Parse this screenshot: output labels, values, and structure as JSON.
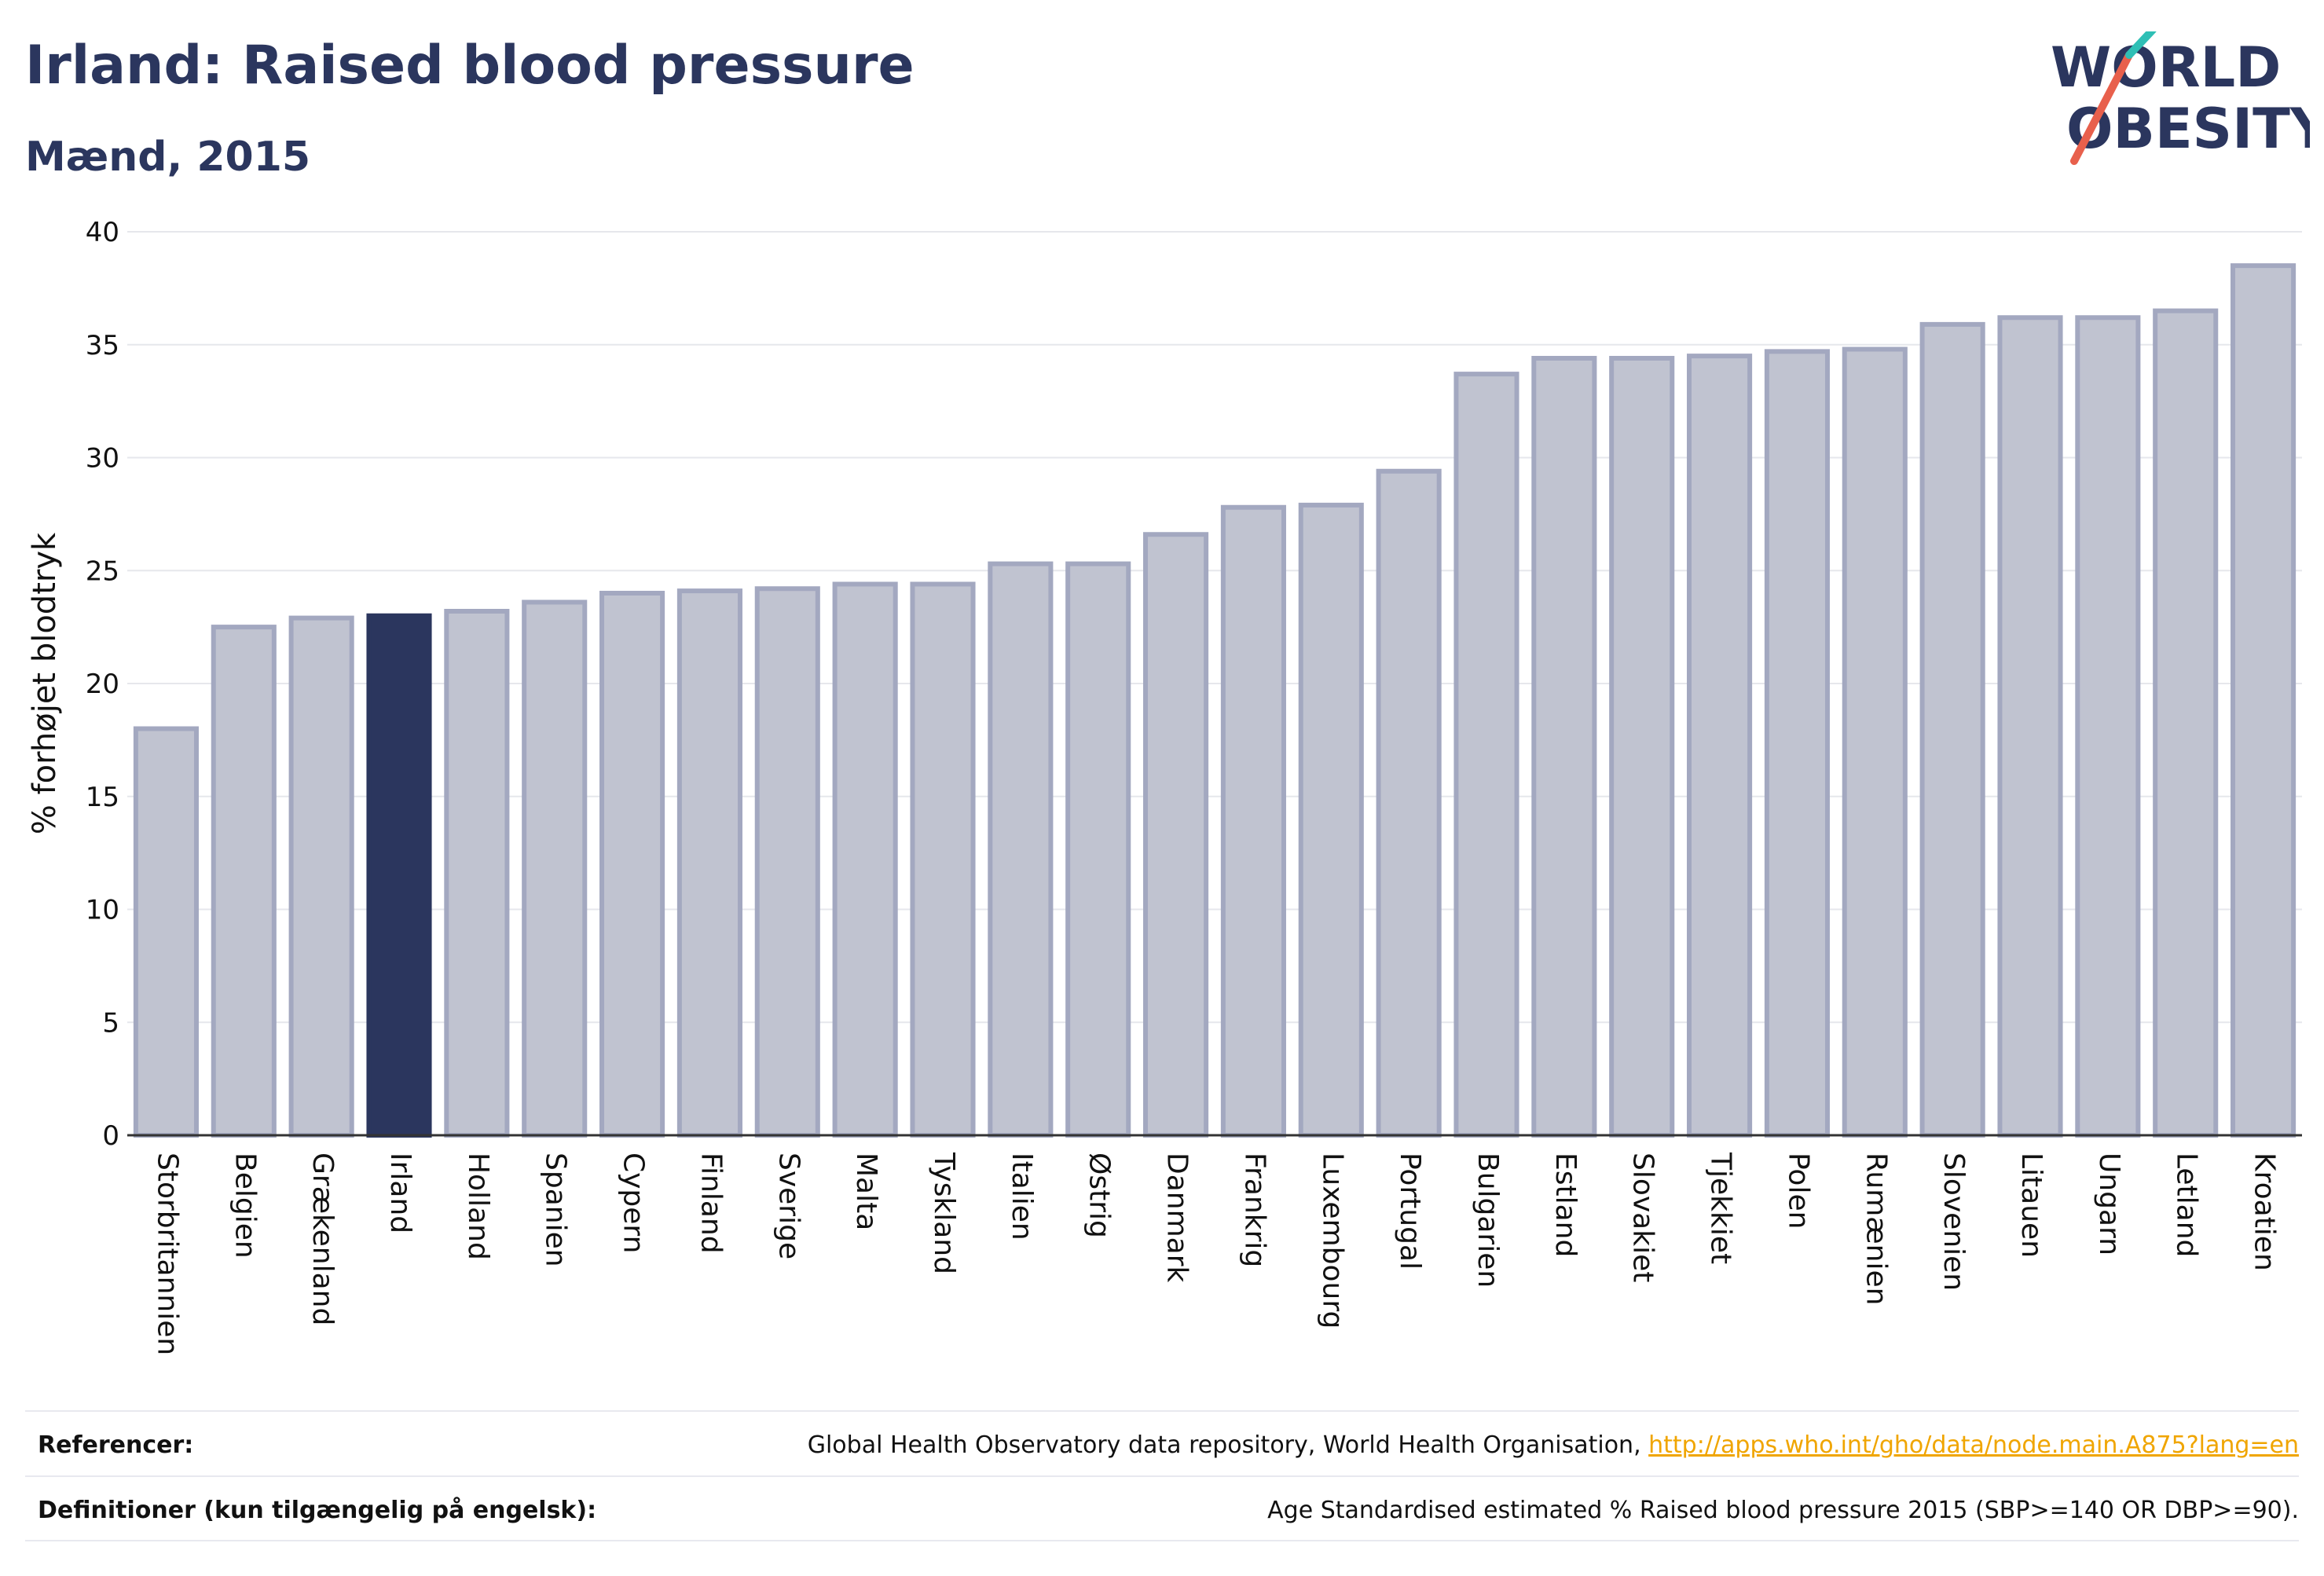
{
  "header": {
    "title": "Irland: Raised blood pressure",
    "subtitle": "Mænd, 2015"
  },
  "logo": {
    "line1": "WORLD",
    "line2": "OBESITY"
  },
  "chart_data": {
    "type": "bar",
    "ylabel": "% forhøjet blodtryk",
    "ylim": [
      0,
      40
    ],
    "yticks": [
      0,
      5,
      10,
      15,
      20,
      25,
      30,
      35,
      40
    ],
    "grid": true,
    "highlight": "Irland",
    "colors": {
      "bar": "#c0c3d0",
      "bar_stroke": "#a3a8c0",
      "highlight": "#2b365e"
    },
    "categories": [
      "Storbritannien",
      "Belgien",
      "Grækenland",
      "Irland",
      "Holland",
      "Spanien",
      "Cypern",
      "Finland",
      "Sverige",
      "Malta",
      "Tyskland",
      "Italien",
      "Østrig",
      "Danmark",
      "Frankrig",
      "Luxembourg",
      "Portugal",
      "Bulgarien",
      "Estland",
      "Slovakiet",
      "Tjekkiet",
      "Polen",
      "Rumænien",
      "Slovenien",
      "Litauen",
      "Ungarn",
      "Letland",
      "Kroatien"
    ],
    "values": [
      18.0,
      22.5,
      22.9,
      23.0,
      23.2,
      23.6,
      24.0,
      24.1,
      24.2,
      24.4,
      24.4,
      25.3,
      25.3,
      26.6,
      27.8,
      27.9,
      29.4,
      33.7,
      34.4,
      34.4,
      34.5,
      34.7,
      34.8,
      35.9,
      36.2,
      36.2,
      36.5,
      38.5
    ]
  },
  "footer": {
    "references_label": "Referencer:",
    "references_text": "Global Health Observatory data repository, World Health Organisation, ",
    "references_link": "http://apps.who.int/gho/data/node.main.A875?lang=en",
    "definitions_label": "Definitioner (kun tilgængelig på engelsk):",
    "definitions_text": "Age Standardised estimated % Raised blood pressure 2015 (SBP>=140 OR DBP>=90)."
  }
}
